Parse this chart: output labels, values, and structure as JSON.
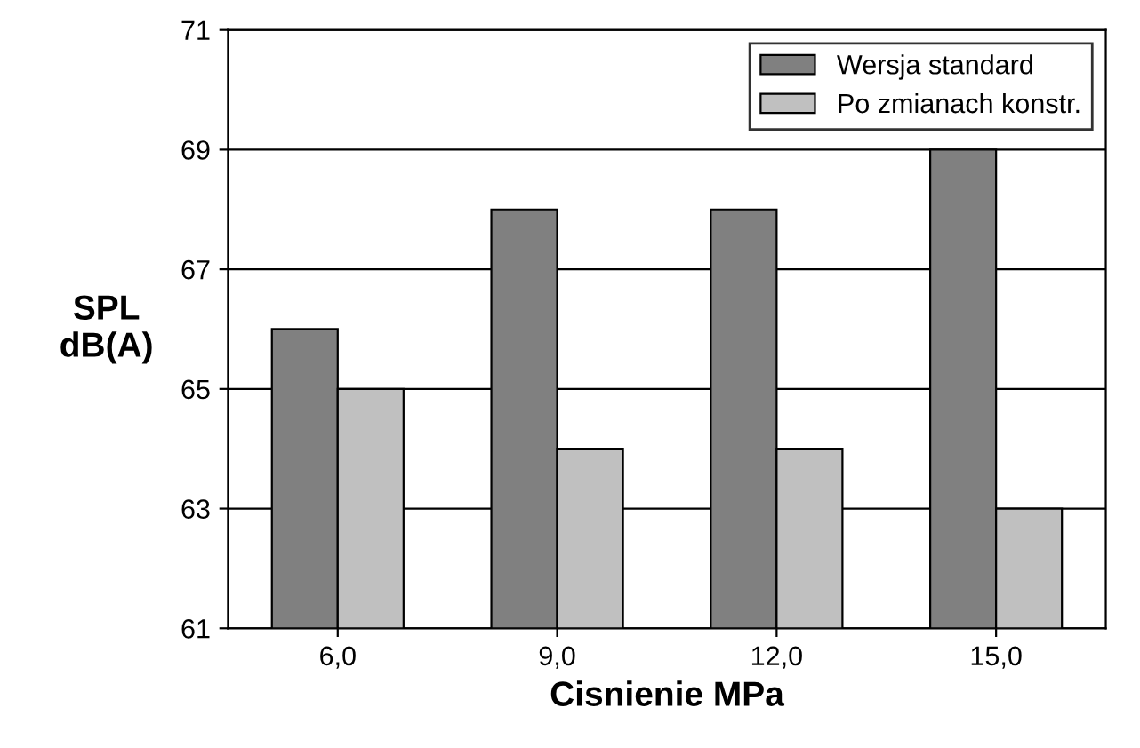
{
  "chart_data": {
    "type": "bar",
    "xlabel": "Cisnienie MPa",
    "ylabel": "SPL\ndB(A)",
    "categories": [
      "6,0",
      "9,0",
      "12,0",
      "15,0"
    ],
    "series": [
      {
        "name": "Wersja standard",
        "color": "#808080",
        "values": [
          66,
          68,
          68,
          69
        ]
      },
      {
        "name": "Po zmianach konstr.",
        "color": "#c0c0c0",
        "values": [
          65,
          64,
          64,
          63
        ]
      }
    ],
    "ylim": [
      61,
      71
    ],
    "yticks": [
      61,
      63,
      65,
      67,
      69,
      71
    ],
    "grid": "y",
    "legend": "top right"
  }
}
